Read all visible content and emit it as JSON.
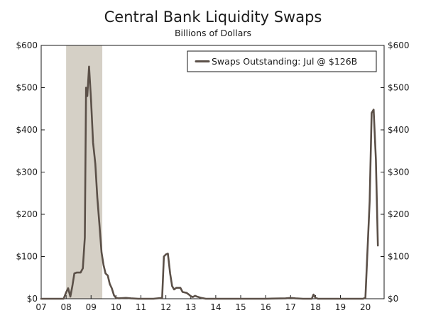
{
  "chart_data": {
    "type": "line",
    "title": "Central Bank Liquidity Swaps",
    "subtitle": "Billions of Dollars",
    "xlabel": "",
    "ylabel": "",
    "x_range": [
      2007,
      2020.75
    ],
    "ylim": [
      0,
      600
    ],
    "y_ticks": [
      0,
      100,
      200,
      300,
      400,
      500,
      600
    ],
    "y_tick_labels": [
      "$0",
      "$100",
      "$200",
      "$300",
      "$400",
      "$500",
      "$600"
    ],
    "x_tick_values": [
      2007,
      2008,
      2009,
      2010,
      2011,
      2012,
      2013,
      2014,
      2015,
      2016,
      2017,
      2018,
      2019,
      2020
    ],
    "x_tick_labels": [
      "07",
      "08",
      "09",
      "10",
      "11",
      "12",
      "13",
      "14",
      "15",
      "16",
      "17",
      "18",
      "19",
      "20"
    ],
    "grid": false,
    "legend_position": "top-right",
    "colors": {
      "line": "#5b5048",
      "recession": "#d5d0c6",
      "axis": "#1a1a1a"
    },
    "recession_bands": [
      [
        2008.0,
        2009.45
      ]
    ],
    "series": [
      {
        "name": "Swaps Outstanding: Jul @ $126B",
        "points": [
          [
            2007.0,
            0
          ],
          [
            2007.9,
            0
          ],
          [
            2008.0,
            15
          ],
          [
            2008.08,
            25
          ],
          [
            2008.17,
            5
          ],
          [
            2008.25,
            30
          ],
          [
            2008.33,
            60
          ],
          [
            2008.42,
            62
          ],
          [
            2008.58,
            62
          ],
          [
            2008.67,
            72
          ],
          [
            2008.75,
            145
          ],
          [
            2008.8,
            500
          ],
          [
            2008.85,
            480
          ],
          [
            2008.92,
            550
          ],
          [
            2009.0,
            470
          ],
          [
            2009.08,
            370
          ],
          [
            2009.17,
            320
          ],
          [
            2009.25,
            240
          ],
          [
            2009.33,
            180
          ],
          [
            2009.42,
            110
          ],
          [
            2009.5,
            80
          ],
          [
            2009.58,
            60
          ],
          [
            2009.67,
            55
          ],
          [
            2009.75,
            35
          ],
          [
            2009.83,
            25
          ],
          [
            2009.92,
            8
          ],
          [
            2010.0,
            2
          ],
          [
            2010.1,
            1
          ],
          [
            2010.4,
            2
          ],
          [
            2010.6,
            1
          ],
          [
            2010.9,
            0
          ],
          [
            2011.5,
            0
          ],
          [
            2011.85,
            2
          ],
          [
            2011.92,
            100
          ],
          [
            2012.0,
            105
          ],
          [
            2012.08,
            107
          ],
          [
            2012.17,
            60
          ],
          [
            2012.25,
            30
          ],
          [
            2012.33,
            22
          ],
          [
            2012.42,
            26
          ],
          [
            2012.58,
            26
          ],
          [
            2012.67,
            16
          ],
          [
            2012.83,
            14
          ],
          [
            2012.92,
            10
          ],
          [
            2013.0,
            6
          ],
          [
            2013.08,
            4
          ],
          [
            2013.17,
            7
          ],
          [
            2013.25,
            5
          ],
          [
            2013.42,
            2
          ],
          [
            2013.6,
            0
          ],
          [
            2015.0,
            0
          ],
          [
            2016.0,
            0
          ],
          [
            2016.8,
            1
          ],
          [
            2017.0,
            2
          ],
          [
            2017.2,
            1
          ],
          [
            2017.5,
            0
          ],
          [
            2017.85,
            0
          ],
          [
            2017.92,
            10
          ],
          [
            2018.0,
            2
          ],
          [
            2018.1,
            0
          ],
          [
            2019.0,
            0
          ],
          [
            2019.4,
            0
          ],
          [
            2019.9,
            0
          ],
          [
            2020.0,
            2
          ],
          [
            2020.17,
            230
          ],
          [
            2020.25,
            440
          ],
          [
            2020.33,
            448
          ],
          [
            2020.42,
            330
          ],
          [
            2020.5,
            126
          ]
        ]
      }
    ]
  }
}
